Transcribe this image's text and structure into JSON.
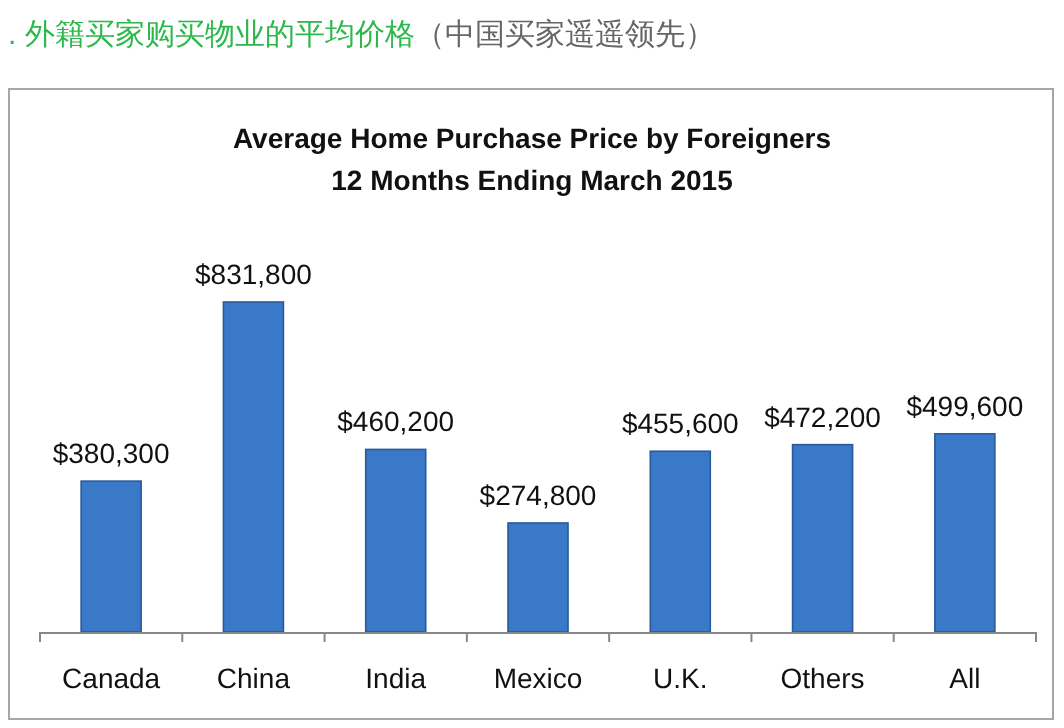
{
  "chart_data": {
    "type": "bar",
    "title": "Average Home Purchase Price by Foreigners\n12 Months Ending March 2015",
    "annotations": [
      ". 外籍买家购买物业的平均价格",
      "（中国买家遥遥领先）"
    ],
    "categories": [
      "Canada",
      "China",
      "India",
      "Mexico",
      "U.K.",
      "Others",
      "All"
    ],
    "values": [
      380300,
      831800,
      460200,
      274800,
      455600,
      472200,
      499600
    ],
    "value_labels": [
      "$380,300",
      "$831,800",
      "$460,200",
      "$274,800",
      "$455,600",
      "$472,200",
      "$499,600"
    ],
    "color": "#3a78c8"
  }
}
